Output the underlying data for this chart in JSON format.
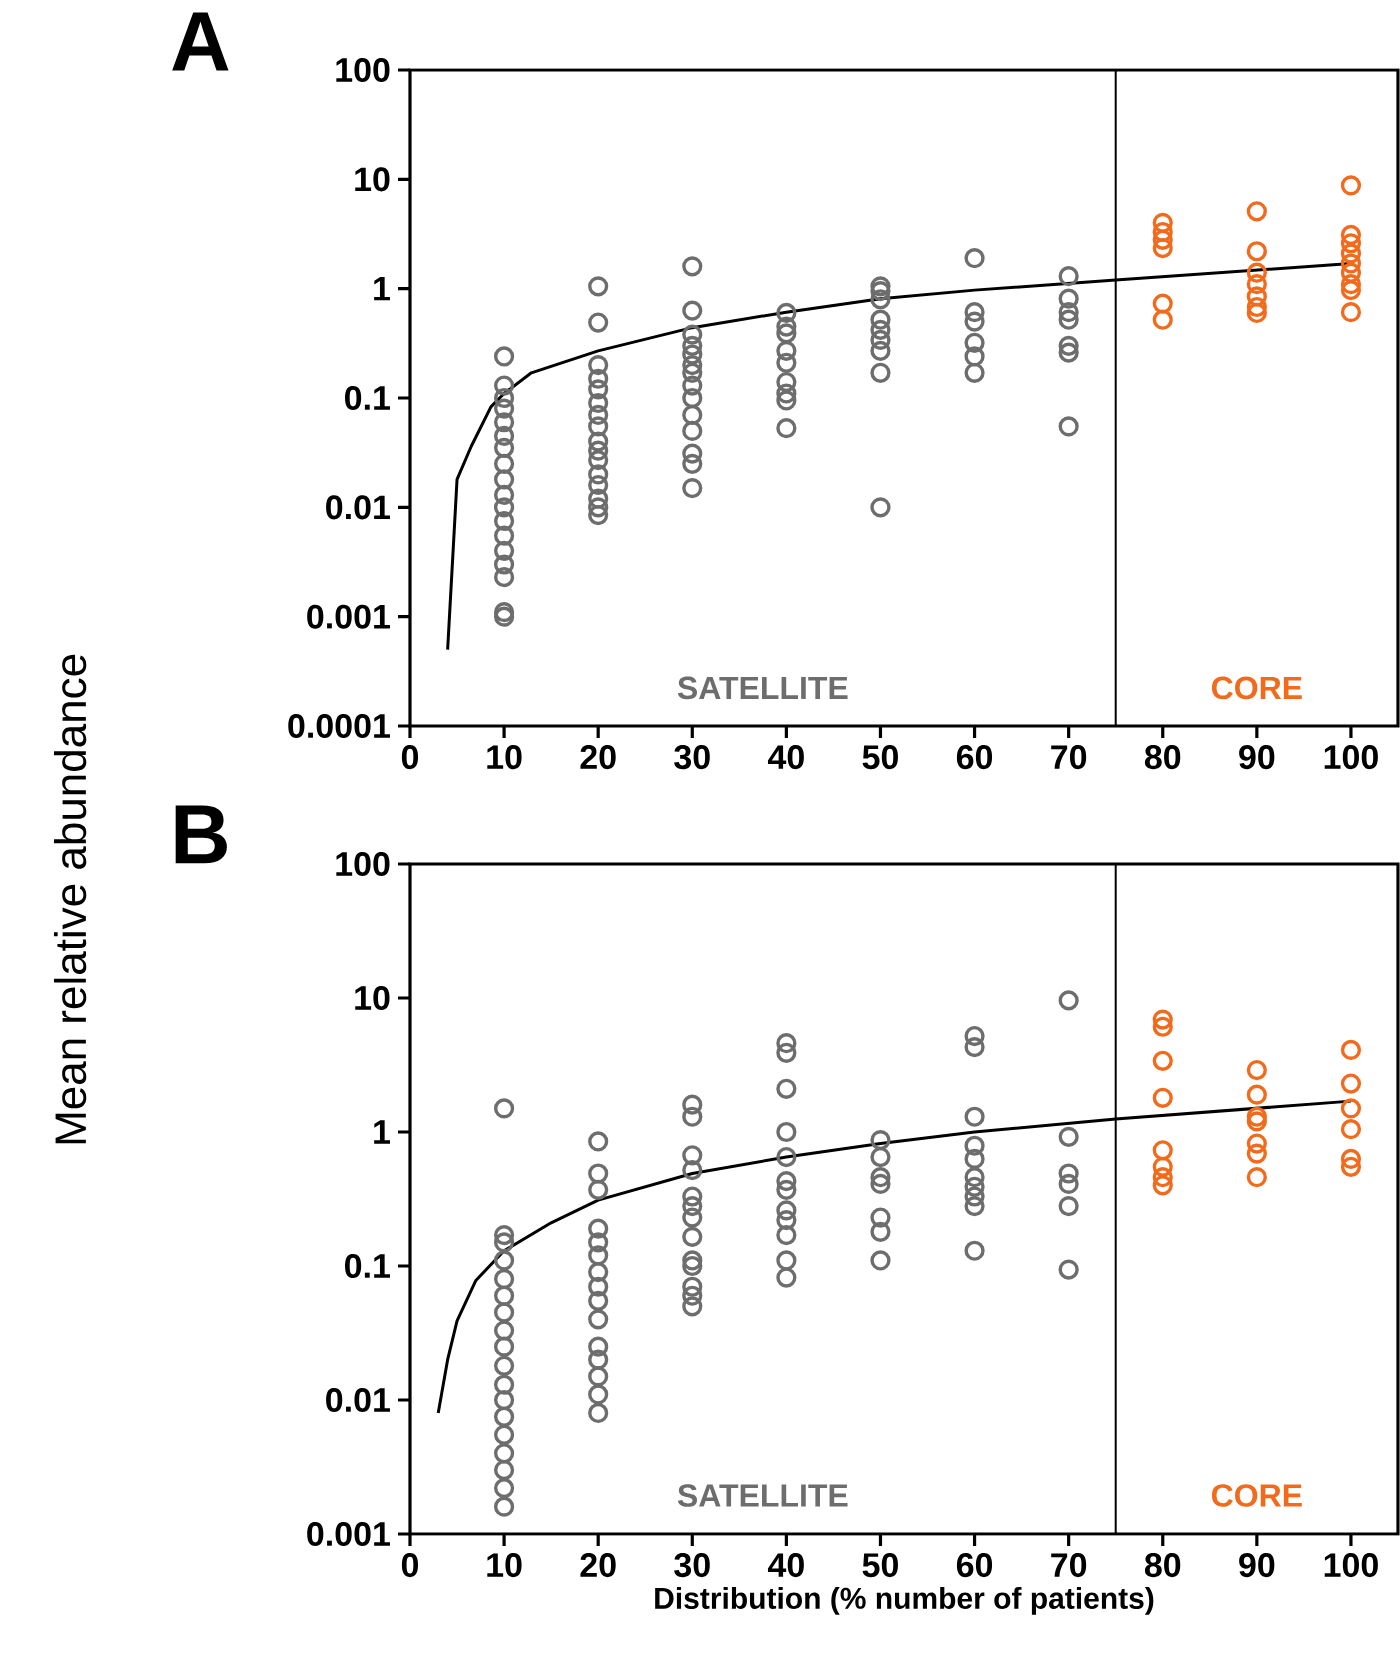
{
  "chart_data": [
    {
      "type": "scatter",
      "title": "A",
      "ylabel": "Mean relative abundance",
      "log": "y",
      "marker": "circle",
      "xlim": [
        0,
        105
      ],
      "xticks": [
        0,
        10,
        20,
        30,
        40,
        50,
        60,
        70,
        80,
        90,
        100
      ],
      "ylim": [
        0.0001,
        100
      ],
      "yticks": [
        0.0001,
        0.001,
        0.01,
        0.1,
        1,
        10,
        100
      ],
      "ref_lines": [
        {
          "axis": "x",
          "value": 75,
          "color": "#000000"
        }
      ],
      "annotations": [
        "SATELLITE",
        "CORE"
      ],
      "series": [
        {
          "color": "#6d6d6d",
          "x": [
            10,
            10,
            10,
            10,
            10,
            10,
            10,
            10,
            10,
            10,
            10,
            10,
            10,
            10,
            10,
            10,
            10,
            10,
            20,
            20,
            20,
            20,
            20,
            20,
            20,
            20,
            20,
            20,
            20,
            20,
            20,
            20,
            20,
            20,
            30,
            30,
            30,
            30,
            30,
            30,
            30,
            30,
            30,
            30,
            30,
            30,
            30,
            30,
            40,
            40,
            40,
            40,
            40,
            40,
            40,
            40,
            40,
            50,
            50,
            50,
            50,
            50,
            50,
            50,
            50,
            50,
            60,
            60,
            60,
            60,
            60,
            60,
            70,
            70,
            70,
            70,
            70,
            70,
            70
          ],
          "values": [
            0.24,
            0.13,
            0.1,
            0.08,
            0.06,
            0.045,
            0.035,
            0.025,
            0.018,
            0.013,
            0.01,
            0.0075,
            0.0055,
            0.004,
            0.003,
            0.0023,
            0.0011,
            0.001,
            1.05,
            0.49,
            0.2,
            0.15,
            0.12,
            0.09,
            0.07,
            0.055,
            0.04,
            0.033,
            0.027,
            0.02,
            0.016,
            0.012,
            0.01,
            0.0085,
            1.6,
            0.63,
            0.38,
            0.3,
            0.25,
            0.2,
            0.17,
            0.13,
            0.1,
            0.07,
            0.05,
            0.031,
            0.025,
            0.015,
            0.6,
            0.45,
            0.39,
            0.27,
            0.21,
            0.14,
            0.11,
            0.095,
            0.053,
            1.05,
            0.95,
            0.8,
            0.52,
            0.42,
            0.34,
            0.27,
            0.17,
            0.01,
            1.9,
            0.61,
            0.5,
            0.32,
            0.24,
            0.17,
            1.3,
            0.81,
            0.61,
            0.52,
            0.3,
            0.26,
            0.055
          ]
        },
        {
          "color": "#f26a1b",
          "x": [
            80,
            80,
            80,
            80,
            80,
            80,
            90,
            90,
            90,
            90,
            90,
            90,
            90,
            100,
            100,
            100,
            100,
            100,
            100,
            100,
            100,
            100
          ],
          "values": [
            4,
            3.3,
            2.8,
            2.35,
            0.73,
            0.52,
            5.1,
            2.2,
            1.4,
            1.1,
            0.85,
            0.68,
            0.6,
            8.8,
            3.1,
            2.6,
            2.1,
            1.7,
            1.4,
            1.1,
            0.97,
            0.61
          ]
        },
        {
          "type": "line",
          "color": "#000000",
          "marker": "none",
          "line_style": "solid",
          "x": [
            4,
            5,
            6.5,
            8.6,
            10,
            12.9,
            20,
            30,
            40,
            50,
            60,
            75,
            100
          ],
          "values": [
            0.0005,
            0.018,
            0.036,
            0.083,
            0.11,
            0.17,
            0.27,
            0.44,
            0.61,
            0.81,
            0.97,
            1.2,
            1.7
          ]
        }
      ]
    },
    {
      "type": "scatter",
      "title": "B",
      "xlabel": "Distribution (% number of patients)",
      "log": "y",
      "marker": "circle",
      "xlim": [
        0,
        105
      ],
      "xticks": [
        0,
        10,
        20,
        30,
        40,
        50,
        60,
        70,
        80,
        90,
        100
      ],
      "ylim": [
        0.001,
        100
      ],
      "yticks": [
        0.001,
        0.01,
        0.1,
        1,
        10,
        100
      ],
      "ref_lines": [
        {
          "axis": "x",
          "value": 75,
          "color": "#000000"
        }
      ],
      "annotations": [
        "SATELLITE",
        "CORE"
      ],
      "series": [
        {
          "color": "#6d6d6d",
          "x": [
            10,
            10,
            10,
            10,
            10,
            10,
            10,
            10,
            10,
            10,
            10,
            10,
            10,
            10,
            10,
            10,
            10,
            10,
            20,
            20,
            20,
            20,
            20,
            20,
            20,
            20,
            20,
            20,
            20,
            20,
            20,
            20,
            20,
            30,
            30,
            30,
            30,
            30,
            30,
            30,
            30,
            30,
            30,
            30,
            30,
            30,
            40,
            40,
            40,
            40,
            40,
            40,
            40,
            40,
            40,
            40,
            40,
            40,
            50,
            50,
            50,
            50,
            50,
            50,
            50,
            60,
            60,
            60,
            60,
            60,
            60,
            60,
            60,
            60,
            60,
            70,
            70,
            70,
            70,
            70,
            70
          ],
          "values": [
            1.5,
            0.17,
            0.15,
            0.11,
            0.08,
            0.06,
            0.045,
            0.033,
            0.025,
            0.018,
            0.013,
            0.01,
            0.0075,
            0.0055,
            0.004,
            0.003,
            0.0022,
            0.0016,
            0.85,
            0.49,
            0.37,
            0.19,
            0.15,
            0.12,
            0.09,
            0.07,
            0.055,
            0.04,
            0.025,
            0.02,
            0.015,
            0.011,
            0.008,
            1.6,
            1.3,
            0.67,
            0.52,
            0.33,
            0.28,
            0.23,
            0.165,
            0.11,
            0.1,
            0.07,
            0.06,
            0.05,
            4.6,
            3.9,
            2.1,
            1.0,
            0.65,
            0.43,
            0.37,
            0.26,
            0.22,
            0.17,
            0.11,
            0.082,
            0.87,
            0.65,
            0.46,
            0.41,
            0.23,
            0.18,
            0.11,
            5.2,
            4.3,
            1.3,
            0.79,
            0.63,
            0.46,
            0.39,
            0.33,
            0.28,
            0.13,
            9.6,
            0.92,
            0.49,
            0.41,
            0.28,
            0.094
          ]
        },
        {
          "color": "#f26a1b",
          "x": [
            80,
            80,
            80,
            80,
            80,
            80,
            80,
            80,
            90,
            90,
            90,
            90,
            90,
            90,
            90,
            100,
            100,
            100,
            100,
            100,
            100
          ],
          "values": [
            6.9,
            6.1,
            3.4,
            1.8,
            0.73,
            0.55,
            0.46,
            0.4,
            2.9,
            1.9,
            1.3,
            1.2,
            0.82,
            0.69,
            0.46,
            4.1,
            2.3,
            1.5,
            1.05,
            0.63,
            0.55
          ]
        },
        {
          "type": "line",
          "color": "#000000",
          "marker": "none",
          "line_style": "solid",
          "x": [
            3,
            4,
            5,
            7,
            10,
            15,
            20,
            30,
            40,
            50,
            60,
            75,
            100
          ],
          "values": [
            0.008,
            0.02,
            0.039,
            0.078,
            0.13,
            0.21,
            0.31,
            0.49,
            0.65,
            0.82,
            1.0,
            1.25,
            1.7
          ]
        }
      ]
    }
  ]
}
